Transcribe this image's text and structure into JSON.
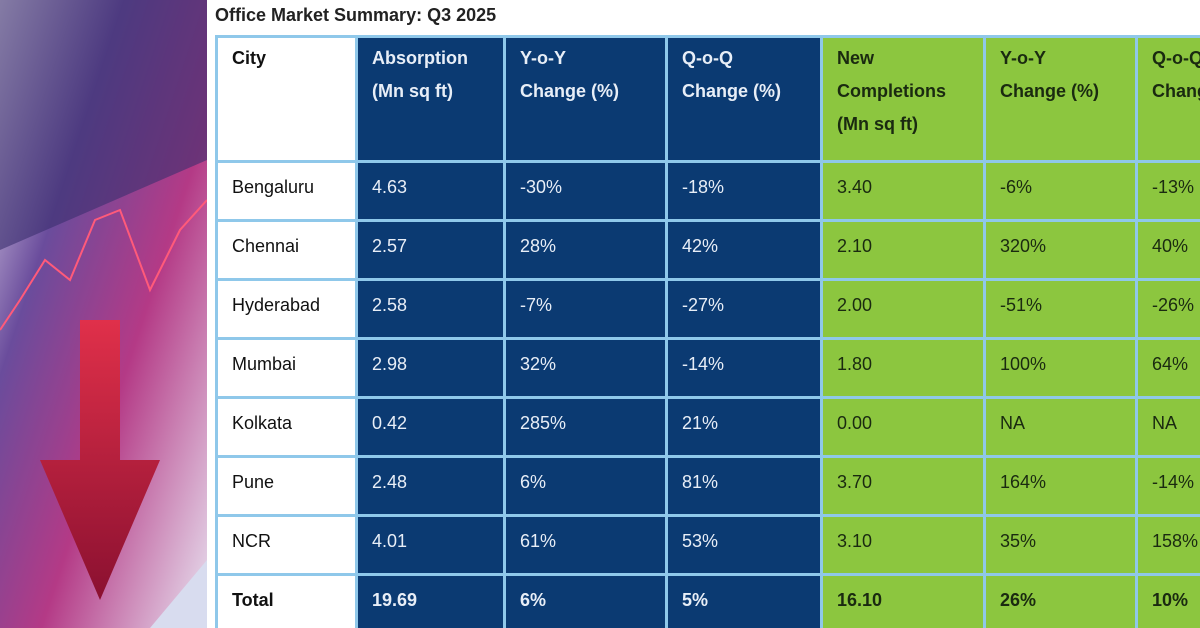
{
  "title": "Office Market Summary: Q3 2025",
  "colors": {
    "absorption_bg": "#0b3a72",
    "completions_bg": "#8cc63f",
    "border": "#8fc8ea"
  },
  "headers": [
    "City",
    "Absorption\n(Mn sq ft)",
    "Y-o-Y\nChange (%)",
    "Q-o-Q\nChange (%)",
    "New\nCompletions\n(Mn sq ft)",
    "Y-o-Y\nChange (%)",
    "Q-o-Q\nChange (%)"
  ],
  "rows": [
    [
      "Bengaluru",
      "4.63",
      "-30%",
      "-18%",
      "3.40",
      "-6%",
      "-13%"
    ],
    [
      "Chennai",
      "2.57",
      "28%",
      "42%",
      "2.10",
      "320%",
      "40%"
    ],
    [
      "Hyderabad",
      "2.58",
      "-7%",
      "-27%",
      "2.00",
      "-51%",
      "-26%"
    ],
    [
      "Mumbai",
      "2.98",
      "32%",
      "-14%",
      "1.80",
      "100%",
      "64%"
    ],
    [
      "Kolkata",
      "0.42",
      "285%",
      "21%",
      "0.00",
      "NA",
      "NA"
    ],
    [
      "Pune",
      "2.48",
      "6%",
      "81%",
      "3.70",
      "164%",
      "-14%"
    ],
    [
      "NCR",
      "4.01",
      "61%",
      "53%",
      "3.10",
      "35%",
      "158%"
    ],
    [
      "Total",
      "19.69",
      "6%",
      "5%",
      "16.10",
      "26%",
      "10%"
    ]
  ]
}
